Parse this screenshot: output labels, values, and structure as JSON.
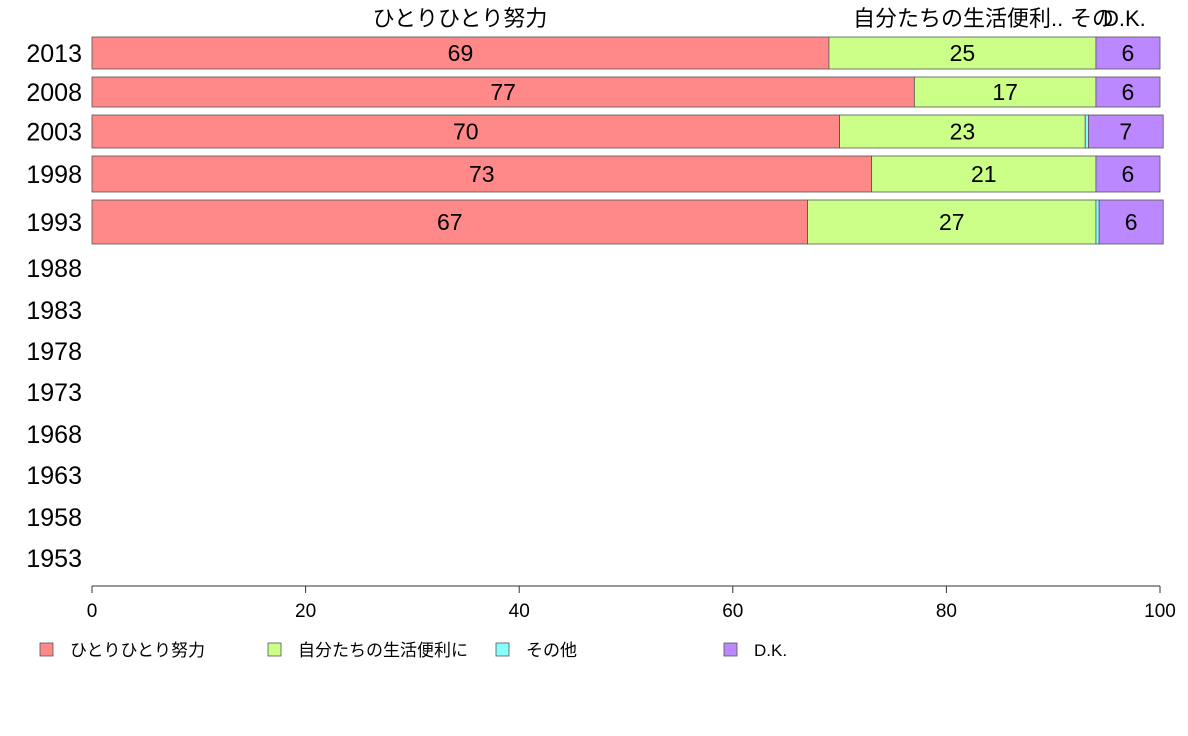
{
  "chart_data": {
    "type": "bar",
    "orientation": "horizontal",
    "stacked": true,
    "categories": [
      "2013",
      "2008",
      "2003",
      "1998",
      "1993",
      "1988",
      "1983",
      "1978",
      "1973",
      "1968",
      "1963",
      "1958",
      "1953"
    ],
    "series": [
      {
        "name": "ひとりひとり努力",
        "color": "#ff8888",
        "values": [
          69,
          77,
          70,
          73,
          67,
          null,
          null,
          null,
          null,
          null,
          null,
          null,
          null
        ],
        "labels": [
          "69",
          "77",
          "70",
          "73",
          "67"
        ]
      },
      {
        "name": "自分たちの生活便利に",
        "color": "#ccff88",
        "values": [
          25,
          17,
          23,
          21,
          27,
          null,
          null,
          null,
          null,
          null,
          null,
          null,
          null
        ],
        "labels": [
          "25",
          "17",
          "23",
          "21",
          "27"
        ]
      },
      {
        "name": "その他",
        "color": "#88ffff",
        "values": [
          0,
          0,
          0.3,
          0,
          0.3,
          null,
          null,
          null,
          null,
          null,
          null,
          null,
          null
        ],
        "labels": []
      },
      {
        "name": "D.K.",
        "color": "#bb88ff",
        "values": [
          6,
          6,
          7,
          6,
          6,
          null,
          null,
          null,
          null,
          null,
          null,
          null,
          null
        ],
        "labels": [
          "6",
          "6",
          "7",
          "6",
          "6"
        ]
      }
    ],
    "top_labels": [
      "ひとりひとり努力",
      "自分たちの生活便利..",
      "その",
      "D.K."
    ],
    "xlim": [
      0,
      100
    ],
    "xticks": [
      "0",
      "20",
      "40",
      "60",
      "80",
      "100"
    ],
    "grid": false,
    "legend_position": "bottom"
  }
}
